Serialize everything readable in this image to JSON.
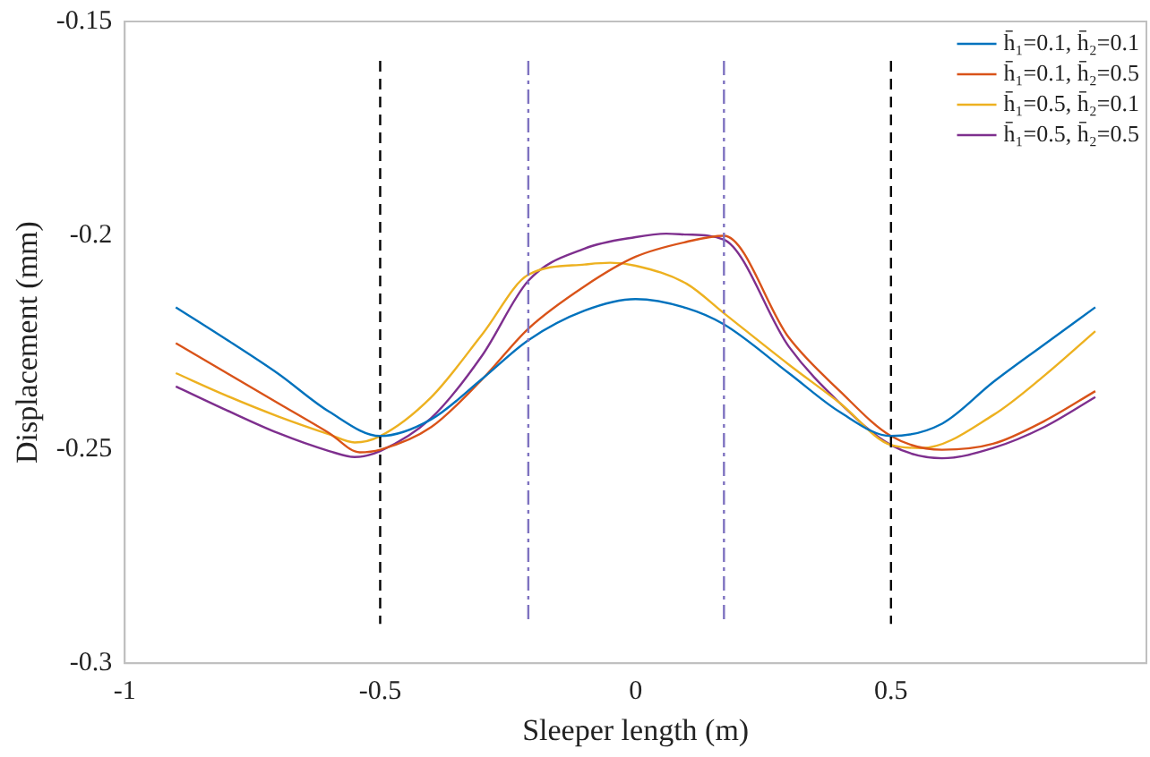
{
  "chart_data": {
    "type": "line",
    "xlabel": "Sleeper length (m)",
    "ylabel": "Displacement (mm)",
    "xlim": [
      -1,
      1
    ],
    "xticks": [
      -1,
      -0.5,
      0,
      0.5
    ],
    "ylim": [
      -0.3,
      -0.15
    ],
    "yticks": [
      -0.3,
      -0.25,
      -0.2,
      -0.15
    ],
    "grid": false,
    "legend": "top right",
    "marker": "none",
    "line_style": "solid",
    "series": [
      {
        "name": "h̄₁=0.1, h̄₂=0.1",
        "color": "#0072bd",
        "x": [
          -0.9,
          -0.8,
          -0.7,
          -0.6,
          -0.5,
          -0.4,
          -0.3,
          -0.21,
          -0.1,
          0,
          0.1,
          0.173,
          0.3,
          0.4,
          0.5,
          0.6,
          0.7,
          0.8,
          0.9
        ],
        "values": [
          -0.2168,
          -0.2244,
          -0.2323,
          -0.2412,
          -0.2469,
          -0.243,
          -0.2335,
          -0.2245,
          -0.2176,
          -0.2149,
          -0.217,
          -0.2208,
          -0.2322,
          -0.2413,
          -0.2469,
          -0.244,
          -0.2343,
          -0.2255,
          -0.2168
        ]
      },
      {
        "name": "h̄₁=0.1, h̄₂=0.5",
        "color": "#d95319",
        "x": [
          -0.9,
          -0.8,
          -0.7,
          -0.6,
          -0.54,
          -0.5,
          -0.4,
          -0.3,
          -0.21,
          -0.1,
          0,
          0.1,
          0.173,
          0.3,
          0.4,
          0.5,
          0.6,
          0.7,
          0.8,
          0.9
        ],
        "values": [
          -0.2252,
          -0.2322,
          -0.2392,
          -0.2462,
          -0.2507,
          -0.2501,
          -0.2448,
          -0.2336,
          -0.2218,
          -0.2119,
          -0.205,
          -0.2015,
          -0.2001,
          -0.2239,
          -0.2364,
          -0.2469,
          -0.2501,
          -0.2487,
          -0.2434,
          -0.2364
        ]
      },
      {
        "name": "h̄₁=0.5, h̄₂=0.1",
        "color": "#edb120",
        "x": [
          -0.9,
          -0.8,
          -0.7,
          -0.6,
          -0.55,
          -0.5,
          -0.4,
          -0.3,
          -0.21,
          -0.1,
          -0.05,
          0,
          0.1,
          0.173,
          0.3,
          0.4,
          0.5,
          0.56,
          0.7,
          0.8,
          0.9
        ],
        "values": [
          -0.2322,
          -0.2375,
          -0.2423,
          -0.2465,
          -0.2484,
          -0.2469,
          -0.2378,
          -0.2231,
          -0.2092,
          -0.2068,
          -0.2064,
          -0.2071,
          -0.2113,
          -0.2182,
          -0.2302,
          -0.2392,
          -0.249,
          -0.2497,
          -0.242,
          -0.2328,
          -0.2224
        ]
      },
      {
        "name": "h̄₁=0.5, h̄₂=0.5",
        "color": "#7e2f8e",
        "x": [
          -0.9,
          -0.8,
          -0.7,
          -0.6,
          -0.55,
          -0.5,
          -0.4,
          -0.3,
          -0.21,
          -0.1,
          0,
          0.06,
          0.1,
          0.173,
          0.3,
          0.4,
          0.5,
          0.6,
          0.7,
          0.8,
          0.9
        ],
        "values": [
          -0.2353,
          -0.2409,
          -0.2462,
          -0.2504,
          -0.2518,
          -0.2504,
          -0.2427,
          -0.228,
          -0.2106,
          -0.2031,
          -0.2004,
          -0.1996,
          -0.1998,
          -0.201,
          -0.226,
          -0.2392,
          -0.249,
          -0.2521,
          -0.2497,
          -0.2448,
          -0.2378
        ]
      }
    ],
    "ref_lines": [
      {
        "axis": "x",
        "value": -0.5,
        "color": "#000000",
        "line_style": "dashed"
      },
      {
        "axis": "x",
        "value": -0.21,
        "color": "#7e72c0",
        "line_style": "dashdot"
      },
      {
        "axis": "x",
        "value": 0.173,
        "color": "#7e72c0",
        "line_style": "dashdot"
      },
      {
        "axis": "x",
        "value": 0.5,
        "color": "#000000",
        "line_style": "dashed"
      }
    ]
  }
}
